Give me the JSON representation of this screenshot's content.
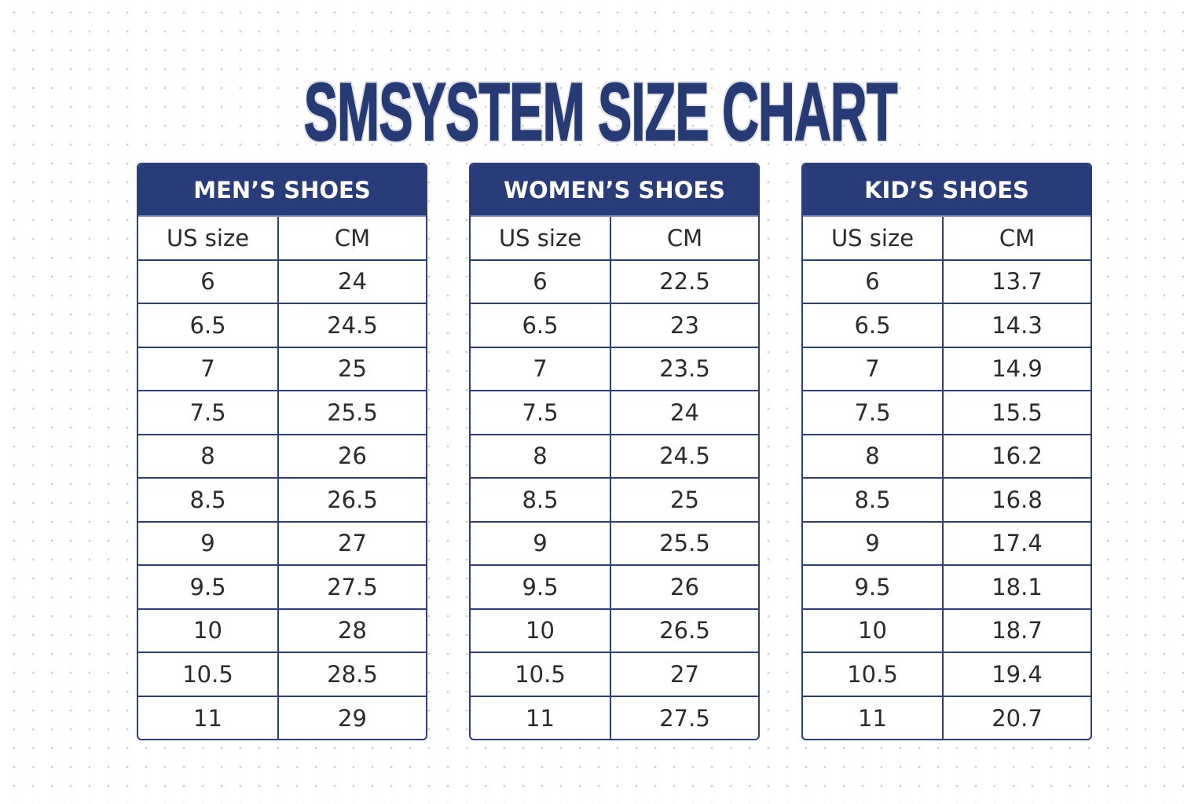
{
  "title": "SMSYSTEM SIZE CHART",
  "colors": {
    "header_bg": "#283c7a",
    "border": "#2b3f7c",
    "title": "#263a76"
  },
  "tables": [
    {
      "header": "MEN’S SHOES",
      "columns": [
        "US size",
        "CM"
      ],
      "rows": [
        [
          "6",
          "24"
        ],
        [
          "6.5",
          "24.5"
        ],
        [
          "7",
          "25"
        ],
        [
          "7.5",
          "25.5"
        ],
        [
          "8",
          "26"
        ],
        [
          "8.5",
          "26.5"
        ],
        [
          "9",
          "27"
        ],
        [
          "9.5",
          "27.5"
        ],
        [
          "10",
          "28"
        ],
        [
          "10.5",
          "28.5"
        ],
        [
          "11",
          "29"
        ]
      ]
    },
    {
      "header": "WOMEN’S SHOES",
      "columns": [
        "US size",
        "CM"
      ],
      "rows": [
        [
          "6",
          "22.5"
        ],
        [
          "6.5",
          "23"
        ],
        [
          "7",
          "23.5"
        ],
        [
          "7.5",
          "24"
        ],
        [
          "8",
          "24.5"
        ],
        [
          "8.5",
          "25"
        ],
        [
          "9",
          "25.5"
        ],
        [
          "9.5",
          "26"
        ],
        [
          "10",
          "26.5"
        ],
        [
          "10.5",
          "27"
        ],
        [
          "11",
          "27.5"
        ]
      ]
    },
    {
      "header": "KID’S SHOES",
      "columns": [
        "US size",
        "CM"
      ],
      "rows": [
        [
          "6",
          "13.7"
        ],
        [
          "6.5",
          "14.3"
        ],
        [
          "7",
          "14.9"
        ],
        [
          "7.5",
          "15.5"
        ],
        [
          "8",
          "16.2"
        ],
        [
          "8.5",
          "16.8"
        ],
        [
          "9",
          "17.4"
        ],
        [
          "9.5",
          "18.1"
        ],
        [
          "10",
          "18.7"
        ],
        [
          "10.5",
          "19.4"
        ],
        [
          "11",
          "20.7"
        ]
      ]
    }
  ]
}
